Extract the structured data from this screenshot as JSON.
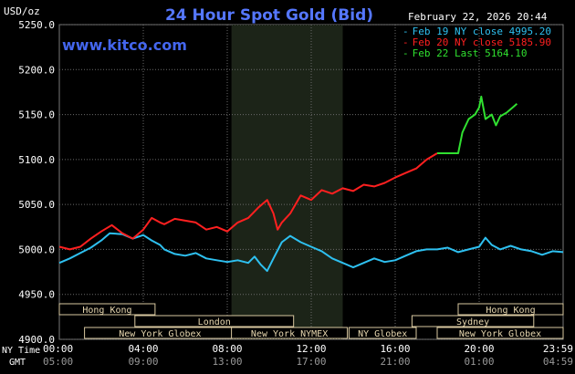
{
  "header": {
    "title": "24 Hour Spot Gold (Bid)",
    "unit": "USD/oz",
    "timestamp": "February 22, 2026 20:44",
    "watermark": "www.kitco.com"
  },
  "legend": [
    {
      "label": "Feb 19 NY close 4995.20",
      "color": "#2ec0f0"
    },
    {
      "label": "Feb 20 NY close 5185.90",
      "color": "#ff2020"
    },
    {
      "label": "Feb 22 Last 5164.10",
      "color": "#30e030"
    }
  ],
  "axes": {
    "time_row_label": "NY Time",
    "gmt_row_label": "GMT",
    "time_ticks": [
      "00:00",
      "04:00",
      "08:00",
      "12:00",
      "16:00",
      "20:00",
      "23:59"
    ],
    "gmt_ticks": [
      "05:00",
      "09:00",
      "13:00",
      "17:00",
      "21:00",
      "01:00",
      "04:59"
    ]
  },
  "markets": [
    {
      "label": "Hong Kong"
    },
    {
      "label": "London"
    },
    {
      "label": "New York Globex"
    },
    {
      "label": "New York NYMEX"
    },
    {
      "label": "NY Globex"
    },
    {
      "label": "Hong Kong"
    },
    {
      "label": "Sydney"
    },
    {
      "label": "New York Globex"
    }
  ],
  "chart_data": {
    "type": "line",
    "ylim": [
      4900,
      5250
    ],
    "y_ticks": [
      "5250.0",
      "5200.0",
      "5150.0",
      "5100.0",
      "5050.0",
      "5000.0",
      "4950.0",
      "4900.0"
    ],
    "x_unit": "hours (NY time)",
    "xlim": [
      0,
      24
    ],
    "series": [
      {
        "name": "Feb 19 NY close 4995.20",
        "color": "#2ec0f0",
        "points": [
          [
            0,
            4985
          ],
          [
            0.5,
            4990
          ],
          [
            1,
            4996
          ],
          [
            1.5,
            5002
          ],
          [
            2,
            5010
          ],
          [
            2.4,
            5018
          ],
          [
            3,
            5017
          ],
          [
            3.5,
            5012
          ],
          [
            4,
            5016
          ],
          [
            4.4,
            5010
          ],
          [
            4.8,
            5005
          ],
          [
            5,
            5000
          ],
          [
            5.5,
            4995
          ],
          [
            6,
            4993
          ],
          [
            6.5,
            4996
          ],
          [
            7,
            4990
          ],
          [
            7.5,
            4988
          ],
          [
            8,
            4986
          ],
          [
            8.5,
            4988
          ],
          [
            9,
            4985
          ],
          [
            9.3,
            4992
          ],
          [
            9.6,
            4983
          ],
          [
            9.9,
            4976
          ],
          [
            10.2,
            4990
          ],
          [
            10.6,
            5008
          ],
          [
            11,
            5015
          ],
          [
            11.5,
            5008
          ],
          [
            12,
            5003
          ],
          [
            12.5,
            4998
          ],
          [
            13,
            4990
          ],
          [
            13.5,
            4985
          ],
          [
            14,
            4980
          ],
          [
            14.5,
            4985
          ],
          [
            15,
            4990
          ],
          [
            15.5,
            4986
          ],
          [
            16,
            4988
          ],
          [
            16.5,
            4993
          ],
          [
            17,
            4998
          ],
          [
            17.5,
            5000
          ],
          [
            18,
            5000
          ],
          [
            18.5,
            5002
          ],
          [
            19,
            4997
          ],
          [
            19.5,
            5000
          ],
          [
            20,
            5003
          ],
          [
            20.3,
            5013
          ],
          [
            20.6,
            5005
          ],
          [
            21,
            5000
          ],
          [
            21.5,
            5004
          ],
          [
            22,
            5000
          ],
          [
            22.5,
            4998
          ],
          [
            23,
            4994
          ],
          [
            23.5,
            4998
          ],
          [
            24,
            4997
          ]
        ]
      },
      {
        "name": "Feb 20 NY close 5185.90",
        "color": "#ff2020",
        "points": [
          [
            0,
            5003
          ],
          [
            0.5,
            5000
          ],
          [
            1,
            5003
          ],
          [
            1.5,
            5012
          ],
          [
            2,
            5020
          ],
          [
            2.5,
            5027
          ],
          [
            3,
            5018
          ],
          [
            3.5,
            5012
          ],
          [
            4,
            5022
          ],
          [
            4.4,
            5035
          ],
          [
            4.8,
            5030
          ],
          [
            5,
            5028
          ],
          [
            5.5,
            5034
          ],
          [
            6,
            5032
          ],
          [
            6.5,
            5030
          ],
          [
            7,
            5022
          ],
          [
            7.5,
            5025
          ],
          [
            8,
            5020
          ],
          [
            8.5,
            5030
          ],
          [
            9,
            5035
          ],
          [
            9.5,
            5047
          ],
          [
            9.9,
            5055
          ],
          [
            10.2,
            5040
          ],
          [
            10.4,
            5022
          ],
          [
            10.6,
            5030
          ],
          [
            11,
            5040
          ],
          [
            11.5,
            5060
          ],
          [
            12,
            5055
          ],
          [
            12.5,
            5066
          ],
          [
            13,
            5062
          ],
          [
            13.5,
            5068
          ],
          [
            14,
            5065
          ],
          [
            14.5,
            5072
          ],
          [
            15,
            5070
          ],
          [
            15.5,
            5074
          ],
          [
            16,
            5080
          ],
          [
            16.5,
            5085
          ],
          [
            17,
            5090
          ],
          [
            17.5,
            5100
          ],
          [
            18,
            5107
          ]
        ]
      },
      {
        "name": "Feb 22 Last 5164.10",
        "color": "#30e030",
        "points": [
          [
            18,
            5107
          ],
          [
            19,
            5107
          ],
          [
            19.2,
            5130
          ],
          [
            19.5,
            5145
          ],
          [
            19.8,
            5150
          ],
          [
            20,
            5158
          ],
          [
            20.1,
            5170
          ],
          [
            20.3,
            5145
          ],
          [
            20.6,
            5150
          ],
          [
            20.8,
            5138
          ],
          [
            21,
            5148
          ],
          [
            21.3,
            5152
          ],
          [
            21.6,
            5158
          ],
          [
            21.8,
            5162
          ]
        ]
      }
    ]
  }
}
